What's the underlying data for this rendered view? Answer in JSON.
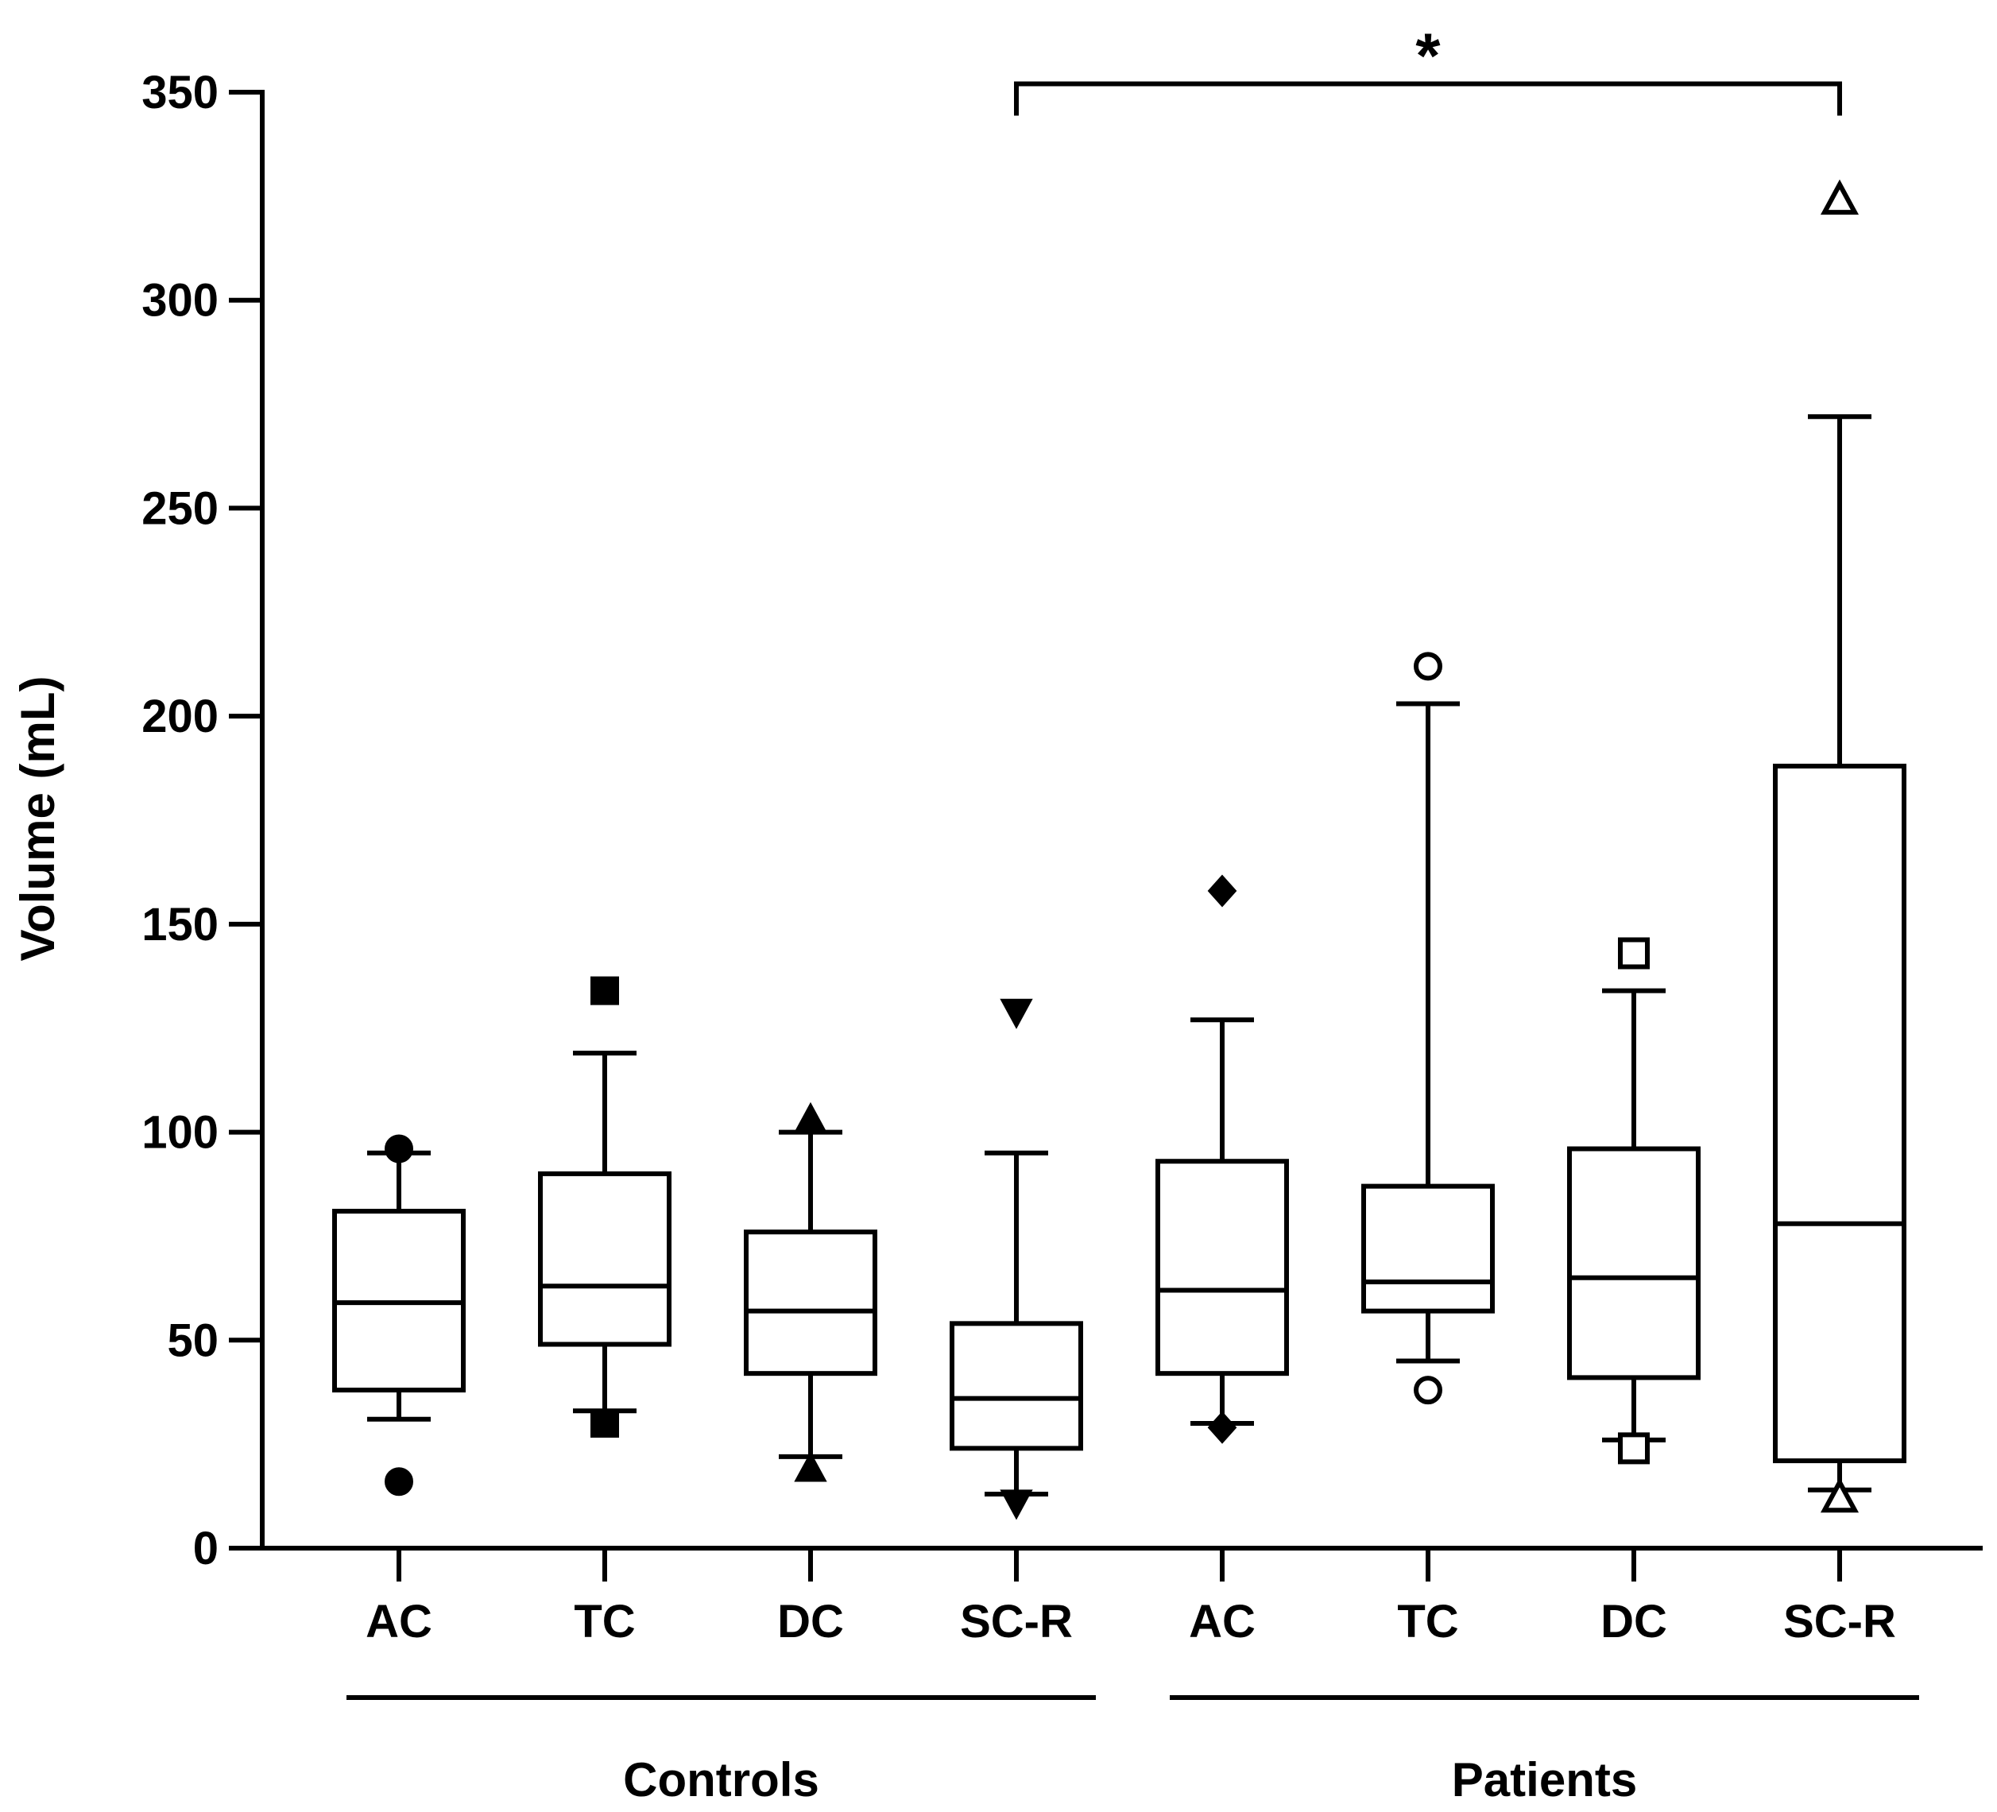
{
  "chart_data": {
    "type": "boxplot",
    "title": "",
    "ylabel": "Volume (mL)",
    "xlabel": "",
    "ylim": [
      0,
      350
    ],
    "yticks": [
      0,
      50,
      100,
      150,
      200,
      250,
      300,
      350
    ],
    "grid": false,
    "groups": [
      "Controls",
      "Patients"
    ],
    "boxes": [
      {
        "group": "Controls",
        "label": "AC",
        "whisker_low": 31,
        "q1": 38,
        "median": 59,
        "q3": 81,
        "whisker_high": 95,
        "outliers": [
          16,
          96
        ],
        "marker": "circle",
        "filled": true
      },
      {
        "group": "Controls",
        "label": "TC",
        "whisker_low": 33,
        "q1": 49,
        "median": 63,
        "q3": 90,
        "whisker_high": 119,
        "outliers": [
          30,
          134
        ],
        "marker": "square",
        "filled": true
      },
      {
        "group": "Controls",
        "label": "DC",
        "whisker_low": 22,
        "q1": 42,
        "median": 57,
        "q3": 76,
        "whisker_high": 100,
        "outliers": [
          19,
          103
        ],
        "marker": "triangle-up",
        "filled": true
      },
      {
        "group": "Controls",
        "label": "SC-R",
        "whisker_low": 13,
        "q1": 24,
        "median": 36,
        "q3": 54,
        "whisker_high": 95,
        "outliers": [
          11,
          129
        ],
        "marker": "triangle-down",
        "filled": true
      },
      {
        "group": "Patients",
        "label": "AC",
        "whisker_low": 30,
        "q1": 42,
        "median": 62,
        "q3": 93,
        "whisker_high": 127,
        "outliers": [
          29,
          158
        ],
        "marker": "diamond",
        "filled": true
      },
      {
        "group": "Patients",
        "label": "TC",
        "whisker_low": 45,
        "q1": 57,
        "median": 64,
        "q3": 87,
        "whisker_high": 203,
        "outliers": [
          38,
          212
        ],
        "marker": "circle",
        "filled": false
      },
      {
        "group": "Patients",
        "label": "DC",
        "whisker_low": 26,
        "q1": 41,
        "median": 65,
        "q3": 96,
        "whisker_high": 134,
        "outliers": [
          24,
          143
        ],
        "marker": "square",
        "filled": false
      },
      {
        "group": "Patients",
        "label": "SC-R",
        "whisker_low": 14,
        "q1": 21,
        "median": 78,
        "q3": 188,
        "whisker_high": 272,
        "outliers": [
          12,
          324
        ],
        "marker": "triangle-up",
        "filled": false
      }
    ],
    "significance": {
      "from_index": 3,
      "to_index": 7,
      "label": "*",
      "level": 352
    }
  }
}
